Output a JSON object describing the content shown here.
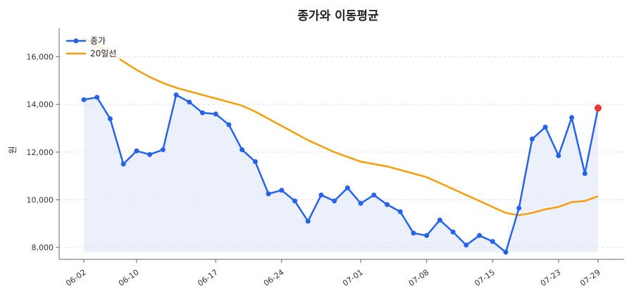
{
  "chart_data": {
    "type": "line",
    "title": "종가와 이동평균",
    "xlabel": "",
    "ylabel": "원",
    "ylim": [
      7500,
      17200
    ],
    "yticks": [
      8000,
      10000,
      12000,
      14000,
      16000
    ],
    "ytick_labels": [
      "8,000",
      "10,000",
      "12,000",
      "14,000",
      "16,000"
    ],
    "xtick_labels": [
      "06-02",
      "06-10",
      "06-17",
      "06-24",
      "07-01",
      "07-08",
      "07-15",
      "07-23",
      "07-29"
    ],
    "xtick_indices": [
      0,
      4,
      10,
      15,
      21,
      26,
      31,
      36,
      39
    ],
    "grid": "y-dashed",
    "legend": "top-left",
    "colors": {
      "close": "#2563eb",
      "ma20": "#f59e0b",
      "fill": "#dbe4f8",
      "last_point": "#e53935"
    },
    "series": [
      {
        "name": "종가",
        "values": [
          14200,
          14300,
          13400,
          11500,
          12050,
          11900,
          12100,
          14400,
          14100,
          13650,
          13600,
          13150,
          12100,
          11600,
          10250,
          10400,
          9950,
          9100,
          10200,
          9950,
          10500,
          9850,
          10200,
          9800,
          9500,
          8600,
          8500,
          9150,
          8650,
          8100,
          8500,
          8250,
          7800,
          9650,
          12550,
          13050,
          11850,
          13450,
          11100,
          13850
        ]
      },
      {
        "name": "20일선",
        "values": [
          16800,
          16450,
          16150,
          15800,
          15450,
          15150,
          14900,
          14700,
          14550,
          14400,
          14250,
          14100,
          13950,
          13700,
          13400,
          13100,
          12800,
          12500,
          12250,
          12000,
          11800,
          11600,
          11500,
          11400,
          11250,
          11100,
          10950,
          10700,
          10450,
          10200,
          9950,
          9700,
          9450,
          9350,
          9450,
          9600,
          9700,
          9900,
          9950,
          10150
        ]
      }
    ]
  }
}
